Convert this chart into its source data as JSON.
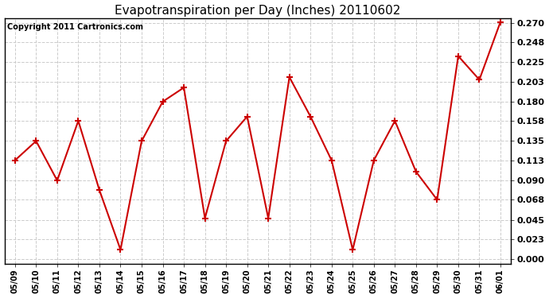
{
  "title": "Evapotranspiration per Day (Inches) 20110602",
  "copyright": "Copyright 2011 Cartronics.com",
  "dates": [
    "05/09",
    "05/10",
    "05/11",
    "05/12",
    "05/13",
    "05/14",
    "05/15",
    "05/16",
    "05/17",
    "05/18",
    "05/19",
    "05/20",
    "05/21",
    "05/22",
    "05/23",
    "05/24",
    "05/25",
    "05/26",
    "05/27",
    "05/28",
    "05/29",
    "05/30",
    "05/31",
    "06/01"
  ],
  "values": [
    0.113,
    0.135,
    0.09,
    0.158,
    0.079,
    0.011,
    0.135,
    0.18,
    0.196,
    0.047,
    0.135,
    0.163,
    0.047,
    0.208,
    0.163,
    0.113,
    0.011,
    0.113,
    0.158,
    0.1,
    0.068,
    0.232,
    0.205,
    0.271
  ],
  "line_color": "#cc0000",
  "marker": "+",
  "marker_color": "#cc0000",
  "marker_size": 6,
  "marker_linewidth": 1.5,
  "ylim": [
    -0.005,
    0.275
  ],
  "yticks": [
    0.0,
    0.023,
    0.045,
    0.068,
    0.09,
    0.113,
    0.135,
    0.158,
    0.18,
    0.203,
    0.225,
    0.248,
    0.27
  ],
  "grid_color": "#cccccc",
  "bg_color": "#ffffff",
  "title_fontsize": 11,
  "copyright_fontsize": 7,
  "xtick_fontsize": 7,
  "ytick_fontsize": 8,
  "linewidth": 1.5,
  "plot_bg_color": "#ffffff"
}
